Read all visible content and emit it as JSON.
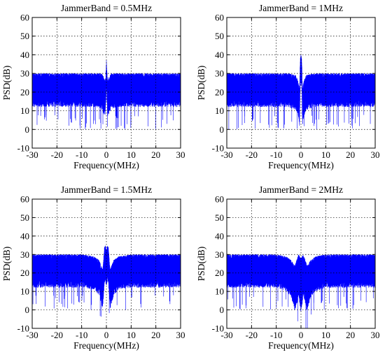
{
  "chart_data": [
    {
      "type": "line",
      "title": "JammerBand = 0.5MHz",
      "xlabel": "Frequency(MHz)",
      "ylabel": "PSD(dB)",
      "xlim": [
        -30,
        30
      ],
      "ylim": [
        -10,
        60
      ],
      "xticks": [
        "-30",
        "-20",
        "-10",
        "0",
        "10",
        "20",
        "30"
      ],
      "yticks": [
        "-10",
        "0",
        "10",
        "20",
        "30",
        "40",
        "50",
        "60"
      ],
      "grid": true,
      "series": [
        {
          "color": "#0000ff",
          "x": [
            -30,
            -10,
            -5,
            -2,
            -1,
            -0.5,
            -0.25,
            0,
            0.25,
            0.5,
            1,
            2,
            5,
            10,
            30
          ],
          "y_upper": [
            30,
            30,
            30,
            30,
            28,
            26,
            30,
            37,
            31,
            26,
            28,
            30,
            30,
            30,
            30
          ],
          "y_center": [
            22,
            22,
            22,
            21,
            19,
            17,
            22,
            30,
            22,
            17,
            19,
            21,
            22,
            22,
            22
          ],
          "y_lower": [
            12,
            12,
            12,
            11,
            8,
            7,
            14,
            22,
            14,
            7,
            8,
            11,
            12,
            12,
            12
          ]
        }
      ]
    },
    {
      "type": "line",
      "title": "JammerBand = 1MHz",
      "xlabel": "Frequency(MHz)",
      "ylabel": "PSD(dB)",
      "xlim": [
        -30,
        30
      ],
      "ylim": [
        -10,
        60
      ],
      "xticks": [
        "-30",
        "-20",
        "-10",
        "0",
        "10",
        "20",
        "30"
      ],
      "yticks": [
        "-10",
        "0",
        "10",
        "20",
        "30",
        "40",
        "50",
        "60"
      ],
      "grid": true,
      "series": [
        {
          "color": "#0000ff",
          "x": [
            -30,
            -10,
            -5,
            -2,
            -1.2,
            -0.6,
            -0.3,
            0,
            0.3,
            0.6,
            1.2,
            2,
            5,
            10,
            30
          ],
          "y_upper": [
            30,
            30,
            30,
            29,
            26,
            22,
            38,
            40,
            38,
            22,
            26,
            29,
            30,
            30,
            30
          ],
          "y_center": [
            22,
            22,
            22,
            20,
            17,
            12,
            30,
            33,
            30,
            12,
            17,
            20,
            22,
            22,
            22
          ],
          "y_lower": [
            12,
            12,
            12,
            10,
            7,
            2,
            22,
            25,
            22,
            2,
            7,
            10,
            12,
            12,
            12
          ]
        }
      ]
    },
    {
      "type": "line",
      "title": "JammerBand = 1.5MHz",
      "xlabel": "Frequency(MHz)",
      "ylabel": "PSD(dB)",
      "xlim": [
        -30,
        30
      ],
      "ylim": [
        -10,
        60
      ],
      "xticks": [
        "-30",
        "-20",
        "-10",
        "0",
        "10",
        "20",
        "30"
      ],
      "yticks": [
        "-10",
        "0",
        "10",
        "20",
        "30",
        "40",
        "50",
        "60"
      ],
      "grid": true,
      "series": [
        {
          "color": "#0000ff",
          "x": [
            -30,
            -10,
            -5,
            -3,
            -1.5,
            -0.8,
            -0.4,
            0,
            0.4,
            0.8,
            1.5,
            3,
            5,
            10,
            30
          ],
          "y_upper": [
            30,
            30,
            29,
            27,
            22,
            34,
            35,
            32,
            35,
            34,
            22,
            27,
            29,
            30,
            30
          ],
          "y_center": [
            22,
            22,
            21,
            19,
            14,
            24,
            26,
            22,
            26,
            24,
            14,
            19,
            21,
            22,
            22
          ],
          "y_lower": [
            12,
            12,
            11,
            8,
            0,
            14,
            16,
            12,
            16,
            14,
            0,
            8,
            11,
            12,
            12
          ]
        }
      ]
    },
    {
      "type": "line",
      "title": "JammerBand = 2MHz",
      "xlabel": "Frequency(MHz)",
      "ylabel": "PSD(dB)",
      "xlim": [
        -30,
        30
      ],
      "ylim": [
        -10,
        60
      ],
      "xticks": [
        "-30",
        "-20",
        "-10",
        "0",
        "10",
        "20",
        "30"
      ],
      "yticks": [
        "-10",
        "0",
        "10",
        "20",
        "30",
        "40",
        "50",
        "60"
      ],
      "grid": true,
      "series": [
        {
          "color": "#0000ff",
          "x": [
            -30,
            -10,
            -6,
            -4,
            -2.5,
            -1.5,
            -1,
            -0.5,
            0,
            0.5,
            1,
            1.5,
            2.5,
            4,
            6,
            10,
            30
          ],
          "y_upper": [
            30,
            30,
            29,
            27,
            24,
            28,
            30,
            29,
            28,
            29,
            30,
            28,
            24,
            27,
            29,
            30,
            30
          ],
          "y_center": [
            22,
            22,
            21,
            18,
            14,
            17,
            20,
            18,
            17,
            18,
            20,
            17,
            14,
            18,
            21,
            22,
            22
          ],
          "y_lower": [
            12,
            12,
            10,
            7,
            -1,
            4,
            8,
            3,
            -2,
            3,
            8,
            4,
            -1,
            7,
            10,
            12,
            12
          ]
        }
      ]
    }
  ]
}
